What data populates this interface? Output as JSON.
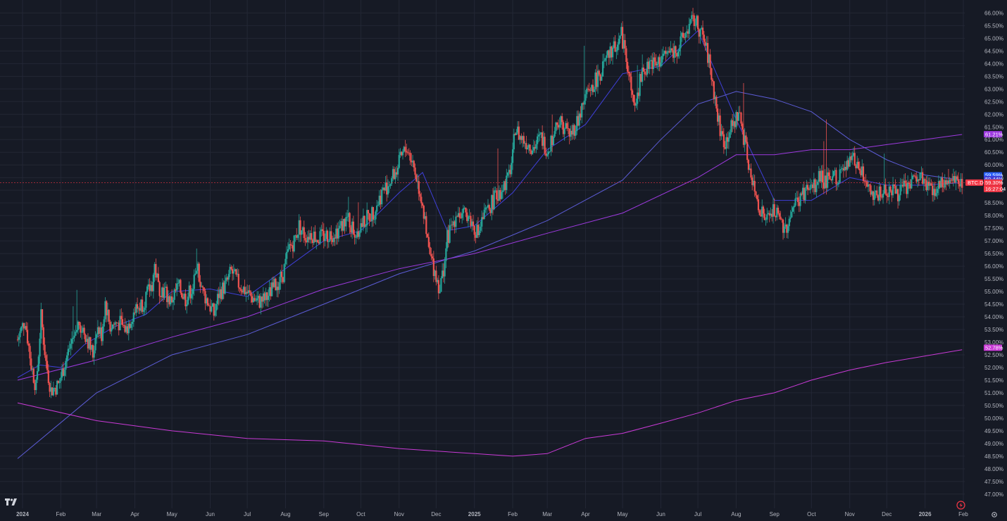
{
  "chart_data": {
    "type": "candlestick",
    "symbol": "BTC.D",
    "y_unit": "%",
    "ylim": [
      46.8,
      66.15
    ],
    "yticks": [
      "66.00%",
      "65.50%",
      "65.00%",
      "64.50%",
      "64.00%",
      "63.50%",
      "63.00%",
      "62.50%",
      "62.00%",
      "61.50%",
      "61.00%",
      "60.50%",
      "60.00%",
      "59.50%",
      "59.00%",
      "58.50%",
      "58.00%",
      "57.50%",
      "57.00%",
      "56.50%",
      "56.00%",
      "55.50%",
      "55.00%",
      "54.50%",
      "54.00%",
      "53.50%",
      "53.00%",
      "52.50%",
      "52.00%",
      "51.50%",
      "51.00%",
      "50.50%",
      "50.00%",
      "49.50%",
      "49.00%",
      "48.50%",
      "48.00%",
      "47.50%",
      "47.00%"
    ],
    "xticks": [
      {
        "label": "2024",
        "bold": true,
        "date": "2024-01-01"
      },
      {
        "label": "Feb",
        "date": "2024-02-01"
      },
      {
        "label": "Mar",
        "date": "2024-03-01"
      },
      {
        "label": "Apr",
        "date": "2024-04-01"
      },
      {
        "label": "May",
        "date": "2024-05-01"
      },
      {
        "label": "Jun",
        "date": "2024-06-01"
      },
      {
        "label": "Jul",
        "date": "2024-07-01"
      },
      {
        "label": "Aug",
        "date": "2024-08-01"
      },
      {
        "label": "Sep",
        "date": "2024-09-01"
      },
      {
        "label": "Oct",
        "date": "2024-10-01"
      },
      {
        "label": "Nov",
        "date": "2024-11-01"
      },
      {
        "label": "Dec",
        "date": "2024-12-01"
      },
      {
        "label": "2025",
        "bold": true,
        "date": "2025-01-01"
      },
      {
        "label": "Feb",
        "date": "2025-02-01"
      },
      {
        "label": "Mar",
        "date": "2025-03-01"
      },
      {
        "label": "Apr",
        "date": "2025-04-01"
      },
      {
        "label": "May",
        "date": "2025-05-01"
      },
      {
        "label": "Jun",
        "date": "2025-06-01"
      },
      {
        "label": "Jul",
        "date": "2025-07-01"
      },
      {
        "label": "Aug",
        "date": "2025-08-01"
      },
      {
        "label": "Sep",
        "date": "2025-09-01"
      },
      {
        "label": "Oct",
        "date": "2025-10-01"
      },
      {
        "label": "Nov",
        "date": "2025-11-01"
      },
      {
        "label": "Dec",
        "date": "2025-12-01"
      },
      {
        "label": "2026",
        "bold": true,
        "date": "2026-01-01"
      },
      {
        "label": "Feb",
        "date": "2026-02-01"
      }
    ],
    "price_path": [
      [
        "2023-12-28",
        53.1
      ],
      [
        "2024-01-03",
        53.9
      ],
      [
        "2024-01-08",
        52.1
      ],
      [
        "2024-01-12",
        51.2
      ],
      [
        "2024-01-16",
        54.0
      ],
      [
        "2024-01-20",
        52.2
      ],
      [
        "2024-01-24",
        51.1
      ],
      [
        "2024-01-30",
        51.3
      ],
      [
        "2024-02-05",
        52.3
      ],
      [
        "2024-02-10",
        53.1
      ],
      [
        "2024-02-16",
        53.8
      ],
      [
        "2024-02-22",
        53.2
      ],
      [
        "2024-02-27",
        52.5
      ],
      [
        "2024-03-01",
        53.6
      ],
      [
        "2024-03-05",
        53.3
      ],
      [
        "2024-03-08",
        54.6
      ],
      [
        "2024-03-12",
        53.6
      ],
      [
        "2024-03-18",
        53.8
      ],
      [
        "2024-03-25",
        53.5
      ],
      [
        "2024-03-31",
        54.2
      ],
      [
        "2024-04-08",
        54.6
      ],
      [
        "2024-04-15",
        55.3
      ],
      [
        "2024-04-17",
        56.0
      ],
      [
        "2024-04-20",
        55.2
      ],
      [
        "2024-04-25",
        55.0
      ],
      [
        "2024-04-30",
        54.6
      ],
      [
        "2024-05-06",
        55.2
      ],
      [
        "2024-05-12",
        54.7
      ],
      [
        "2024-05-18",
        55.2
      ],
      [
        "2024-05-22",
        55.9
      ],
      [
        "2024-05-26",
        55.0
      ],
      [
        "2024-05-31",
        54.5
      ],
      [
        "2024-06-04",
        54.1
      ],
      [
        "2024-06-08",
        54.9
      ],
      [
        "2024-06-14",
        55.3
      ],
      [
        "2024-06-18",
        55.8
      ],
      [
        "2024-06-24",
        55.3
      ],
      [
        "2024-06-30",
        55.0
      ],
      [
        "2024-07-04",
        54.8
      ],
      [
        "2024-07-10",
        54.6
      ],
      [
        "2024-07-16",
        54.7
      ],
      [
        "2024-07-20",
        55.0
      ],
      [
        "2024-07-25",
        55.3
      ],
      [
        "2024-07-30",
        55.7
      ],
      [
        "2024-08-04",
        56.7
      ],
      [
        "2024-08-08",
        57.0
      ],
      [
        "2024-08-12",
        57.6
      ],
      [
        "2024-08-17",
        57.2
      ],
      [
        "2024-08-22",
        57.3
      ],
      [
        "2024-08-27",
        57.1
      ],
      [
        "2024-09-02",
        57.2
      ],
      [
        "2024-09-08",
        57.3
      ],
      [
        "2024-09-14",
        57.5
      ],
      [
        "2024-09-20",
        57.9
      ],
      [
        "2024-09-26",
        57.3
      ],
      [
        "2024-10-01",
        57.6
      ],
      [
        "2024-10-06",
        57.9
      ],
      [
        "2024-10-12",
        58.2
      ],
      [
        "2024-10-18",
        58.9
      ],
      [
        "2024-10-24",
        59.3
      ],
      [
        "2024-10-30",
        59.8
      ],
      [
        "2024-11-03",
        60.3
      ],
      [
        "2024-11-07",
        60.7
      ],
      [
        "2024-11-12",
        60.1
      ],
      [
        "2024-11-16",
        59.3
      ],
      [
        "2024-11-20",
        58.5
      ],
      [
        "2024-11-23",
        57.2
      ],
      [
        "2024-11-26",
        56.4
      ],
      [
        "2024-11-30",
        55.8
      ],
      [
        "2024-12-04",
        55.1
      ],
      [
        "2024-12-07",
        55.9
      ],
      [
        "2024-12-10",
        57.1
      ],
      [
        "2024-12-14",
        57.6
      ],
      [
        "2024-12-18",
        58.2
      ],
      [
        "2024-12-22",
        57.9
      ],
      [
        "2024-12-26",
        58.1
      ],
      [
        "2024-12-31",
        57.6
      ],
      [
        "2025-01-04",
        57.3
      ],
      [
        "2025-01-08",
        57.9
      ],
      [
        "2025-01-12",
        58.2
      ],
      [
        "2025-01-16",
        58.6
      ],
      [
        "2025-01-20",
        58.8
      ],
      [
        "2025-01-24",
        59.2
      ],
      [
        "2025-01-28",
        59.4
      ],
      [
        "2025-02-01",
        60.3
      ],
      [
        "2025-02-03",
        61.5
      ],
      [
        "2025-02-07",
        61.1
      ],
      [
        "2025-02-12",
        60.9
      ],
      [
        "2025-02-18",
        60.7
      ],
      [
        "2025-02-24",
        61.1
      ],
      [
        "2025-03-01",
        60.6
      ],
      [
        "2025-03-05",
        61.1
      ],
      [
        "2025-03-10",
        61.8
      ],
      [
        "2025-03-15",
        61.5
      ],
      [
        "2025-03-20",
        61.2
      ],
      [
        "2025-03-26",
        61.8
      ],
      [
        "2025-03-31",
        62.5
      ],
      [
        "2025-04-05",
        63.0
      ],
      [
        "2025-04-10",
        63.4
      ],
      [
        "2025-04-15",
        63.8
      ],
      [
        "2025-04-20",
        64.3
      ],
      [
        "2025-04-25",
        64.7
      ],
      [
        "2025-04-30",
        65.1
      ],
      [
        "2025-05-03",
        64.6
      ],
      [
        "2025-05-06",
        63.6
      ],
      [
        "2025-05-09",
        62.6
      ],
      [
        "2025-05-12",
        62.2
      ],
      [
        "2025-05-15",
        63.3
      ],
      [
        "2025-05-19",
        63.8
      ],
      [
        "2025-05-24",
        64.1
      ],
      [
        "2025-05-28",
        63.9
      ],
      [
        "2025-06-02",
        64.3
      ],
      [
        "2025-06-06",
        64.4
      ],
      [
        "2025-06-11",
        64.5
      ],
      [
        "2025-06-16",
        64.7
      ],
      [
        "2025-06-20",
        65.1
      ],
      [
        "2025-06-24",
        65.5
      ],
      [
        "2025-06-28",
        65.7
      ],
      [
        "2025-07-02",
        65.4
      ],
      [
        "2025-07-06",
        64.9
      ],
      [
        "2025-07-10",
        64.1
      ],
      [
        "2025-07-14",
        62.9
      ],
      [
        "2025-07-17",
        61.9
      ],
      [
        "2025-07-20",
        61.2
      ],
      [
        "2025-07-23",
        60.9
      ],
      [
        "2025-07-26",
        61.3
      ],
      [
        "2025-07-30",
        61.6
      ],
      [
        "2025-08-03",
        62.1
      ],
      [
        "2025-08-06",
        61.4
      ],
      [
        "2025-08-10",
        60.3
      ],
      [
        "2025-08-14",
        59.2
      ],
      [
        "2025-08-18",
        58.6
      ],
      [
        "2025-08-22",
        58.1
      ],
      [
        "2025-08-26",
        57.8
      ],
      [
        "2025-08-31",
        58.2
      ],
      [
        "2025-09-05",
        57.8
      ],
      [
        "2025-09-10",
        57.5
      ],
      [
        "2025-09-15",
        58.2
      ],
      [
        "2025-09-20",
        58.6
      ],
      [
        "2025-09-25",
        58.9
      ],
      [
        "2025-09-30",
        59.1
      ],
      [
        "2025-10-04",
        59.1
      ],
      [
        "2025-10-08",
        59.6
      ],
      [
        "2025-10-12",
        59.3
      ],
      [
        "2025-10-18",
        59.5
      ],
      [
        "2025-10-24",
        59.6
      ],
      [
        "2025-10-30",
        59.9
      ],
      [
        "2025-11-04",
        60.3
      ],
      [
        "2025-11-08",
        59.9
      ],
      [
        "2025-11-12",
        59.5
      ],
      [
        "2025-11-17",
        59.1
      ],
      [
        "2025-11-22",
        58.8
      ],
      [
        "2025-11-27",
        58.9
      ],
      [
        "2025-12-03",
        59.1
      ],
      [
        "2025-12-10",
        58.9
      ],
      [
        "2025-12-16",
        59.1
      ],
      [
        "2025-12-22",
        59.3
      ],
      [
        "2025-12-28",
        59.5
      ],
      [
        "2026-01-02",
        59.2
      ],
      [
        "2026-01-08",
        59.0
      ],
      [
        "2026-01-14",
        59.3
      ],
      [
        "2026-01-20",
        59.5
      ],
      [
        "2026-01-26",
        59.6
      ],
      [
        "2026-01-31",
        59.3
      ]
    ],
    "moving_averages": [
      {
        "color": "#3f3fd8",
        "points": [
          [
            "2023-12-28",
            51.6
          ],
          [
            "2024-01-15",
            52.1
          ],
          [
            "2024-02-01",
            52.0
          ],
          [
            "2024-02-20",
            52.9
          ],
          [
            "2024-03-15",
            53.6
          ],
          [
            "2024-04-10",
            54.1
          ],
          [
            "2024-05-01",
            55.0
          ],
          [
            "2024-06-01",
            55.1
          ],
          [
            "2024-07-01",
            54.8
          ],
          [
            "2024-08-01",
            55.9
          ],
          [
            "2024-09-01",
            57.0
          ],
          [
            "2024-10-01",
            57.4
          ],
          [
            "2024-11-01",
            58.9
          ],
          [
            "2024-11-20",
            59.7
          ],
          [
            "2024-12-10",
            57.4
          ],
          [
            "2025-01-01",
            57.6
          ],
          [
            "2025-02-01",
            58.9
          ],
          [
            "2025-03-01",
            60.6
          ],
          [
            "2025-04-01",
            61.6
          ],
          [
            "2025-05-01",
            63.6
          ],
          [
            "2025-06-01",
            63.9
          ],
          [
            "2025-07-01",
            65.3
          ],
          [
            "2025-08-01",
            61.8
          ],
          [
            "2025-09-01",
            58.6
          ],
          [
            "2025-10-01",
            58.6
          ],
          [
            "2025-11-01",
            59.5
          ],
          [
            "2025-12-01",
            59.2
          ],
          [
            "2026-01-01",
            59.2
          ],
          [
            "2026-01-31",
            59.3
          ]
        ]
      },
      {
        "color": "#5c5cd6",
        "points": [
          [
            "2023-12-28",
            48.4
          ],
          [
            "2024-03-01",
            51.0
          ],
          [
            "2024-05-01",
            52.5
          ],
          [
            "2024-07-01",
            53.3
          ],
          [
            "2024-09-01",
            54.5
          ],
          [
            "2024-11-01",
            55.7
          ],
          [
            "2025-01-01",
            56.6
          ],
          [
            "2025-03-01",
            57.8
          ],
          [
            "2025-05-01",
            59.4
          ],
          [
            "2025-06-01",
            61.0
          ],
          [
            "2025-07-01",
            62.4
          ],
          [
            "2025-08-01",
            62.9
          ],
          [
            "2025-09-01",
            62.6
          ],
          [
            "2025-10-01",
            62.1
          ],
          [
            "2025-11-01",
            61.0
          ],
          [
            "2025-12-01",
            60.2
          ],
          [
            "2026-01-01",
            59.6
          ],
          [
            "2026-01-31",
            59.4
          ]
        ]
      },
      {
        "color": "#9e3ae0",
        "points": [
          [
            "2023-12-28",
            51.5
          ],
          [
            "2024-03-01",
            52.3
          ],
          [
            "2024-05-01",
            53.2
          ],
          [
            "2024-07-01",
            54.0
          ],
          [
            "2024-09-01",
            55.1
          ],
          [
            "2024-11-01",
            55.9
          ],
          [
            "2025-01-01",
            56.5
          ],
          [
            "2025-03-01",
            57.3
          ],
          [
            "2025-05-01",
            58.1
          ],
          [
            "2025-07-01",
            59.5
          ],
          [
            "2025-08-01",
            60.4
          ],
          [
            "2025-09-01",
            60.4
          ],
          [
            "2025-10-01",
            60.6
          ],
          [
            "2025-11-01",
            60.6
          ],
          [
            "2025-12-01",
            60.8
          ],
          [
            "2026-01-31",
            61.2
          ]
        ]
      },
      {
        "color": "#c93ad6",
        "points": [
          [
            "2023-12-28",
            50.6
          ],
          [
            "2024-03-01",
            49.9
          ],
          [
            "2024-05-01",
            49.5
          ],
          [
            "2024-07-01",
            49.2
          ],
          [
            "2024-09-01",
            49.1
          ],
          [
            "2024-11-01",
            48.8
          ],
          [
            "2025-01-01",
            48.6
          ],
          [
            "2025-02-01",
            48.5
          ],
          [
            "2025-03-01",
            48.6
          ],
          [
            "2025-04-01",
            49.2
          ],
          [
            "2025-05-01",
            49.4
          ],
          [
            "2025-06-01",
            49.8
          ],
          [
            "2025-07-01",
            50.2
          ],
          [
            "2025-08-01",
            50.7
          ],
          [
            "2025-09-01",
            51.0
          ],
          [
            "2025-10-01",
            51.5
          ],
          [
            "2025-11-01",
            51.9
          ],
          [
            "2025-12-01",
            52.2
          ],
          [
            "2026-01-31",
            52.7
          ]
        ]
      }
    ],
    "last_price": 59.3,
    "price_badges": [
      {
        "text": "61.21%",
        "value": 61.21,
        "color": "#9e3ae0"
      },
      {
        "text": "59.59%",
        "value": 59.59,
        "color": "#2962ff"
      },
      {
        "text": "59.44%",
        "value": 59.44,
        "color": "#3f3fd8"
      },
      {
        "text": "59.32%",
        "value": 59.32,
        "color": "#5c5cd6"
      },
      {
        "text": "59.30%",
        "value": 59.3,
        "color": "#f23645"
      },
      {
        "text": "52.78%",
        "value": 52.78,
        "color": "#c93ad6"
      }
    ],
    "symbol_badge": {
      "text": "BTC.D",
      "color": "#f23645"
    },
    "countdown_badge": {
      "text": "16:27:04",
      "color": "#f23645"
    },
    "candle_colors": {
      "up": "#26a69a",
      "down": "#ef5350"
    },
    "grid": true
  }
}
